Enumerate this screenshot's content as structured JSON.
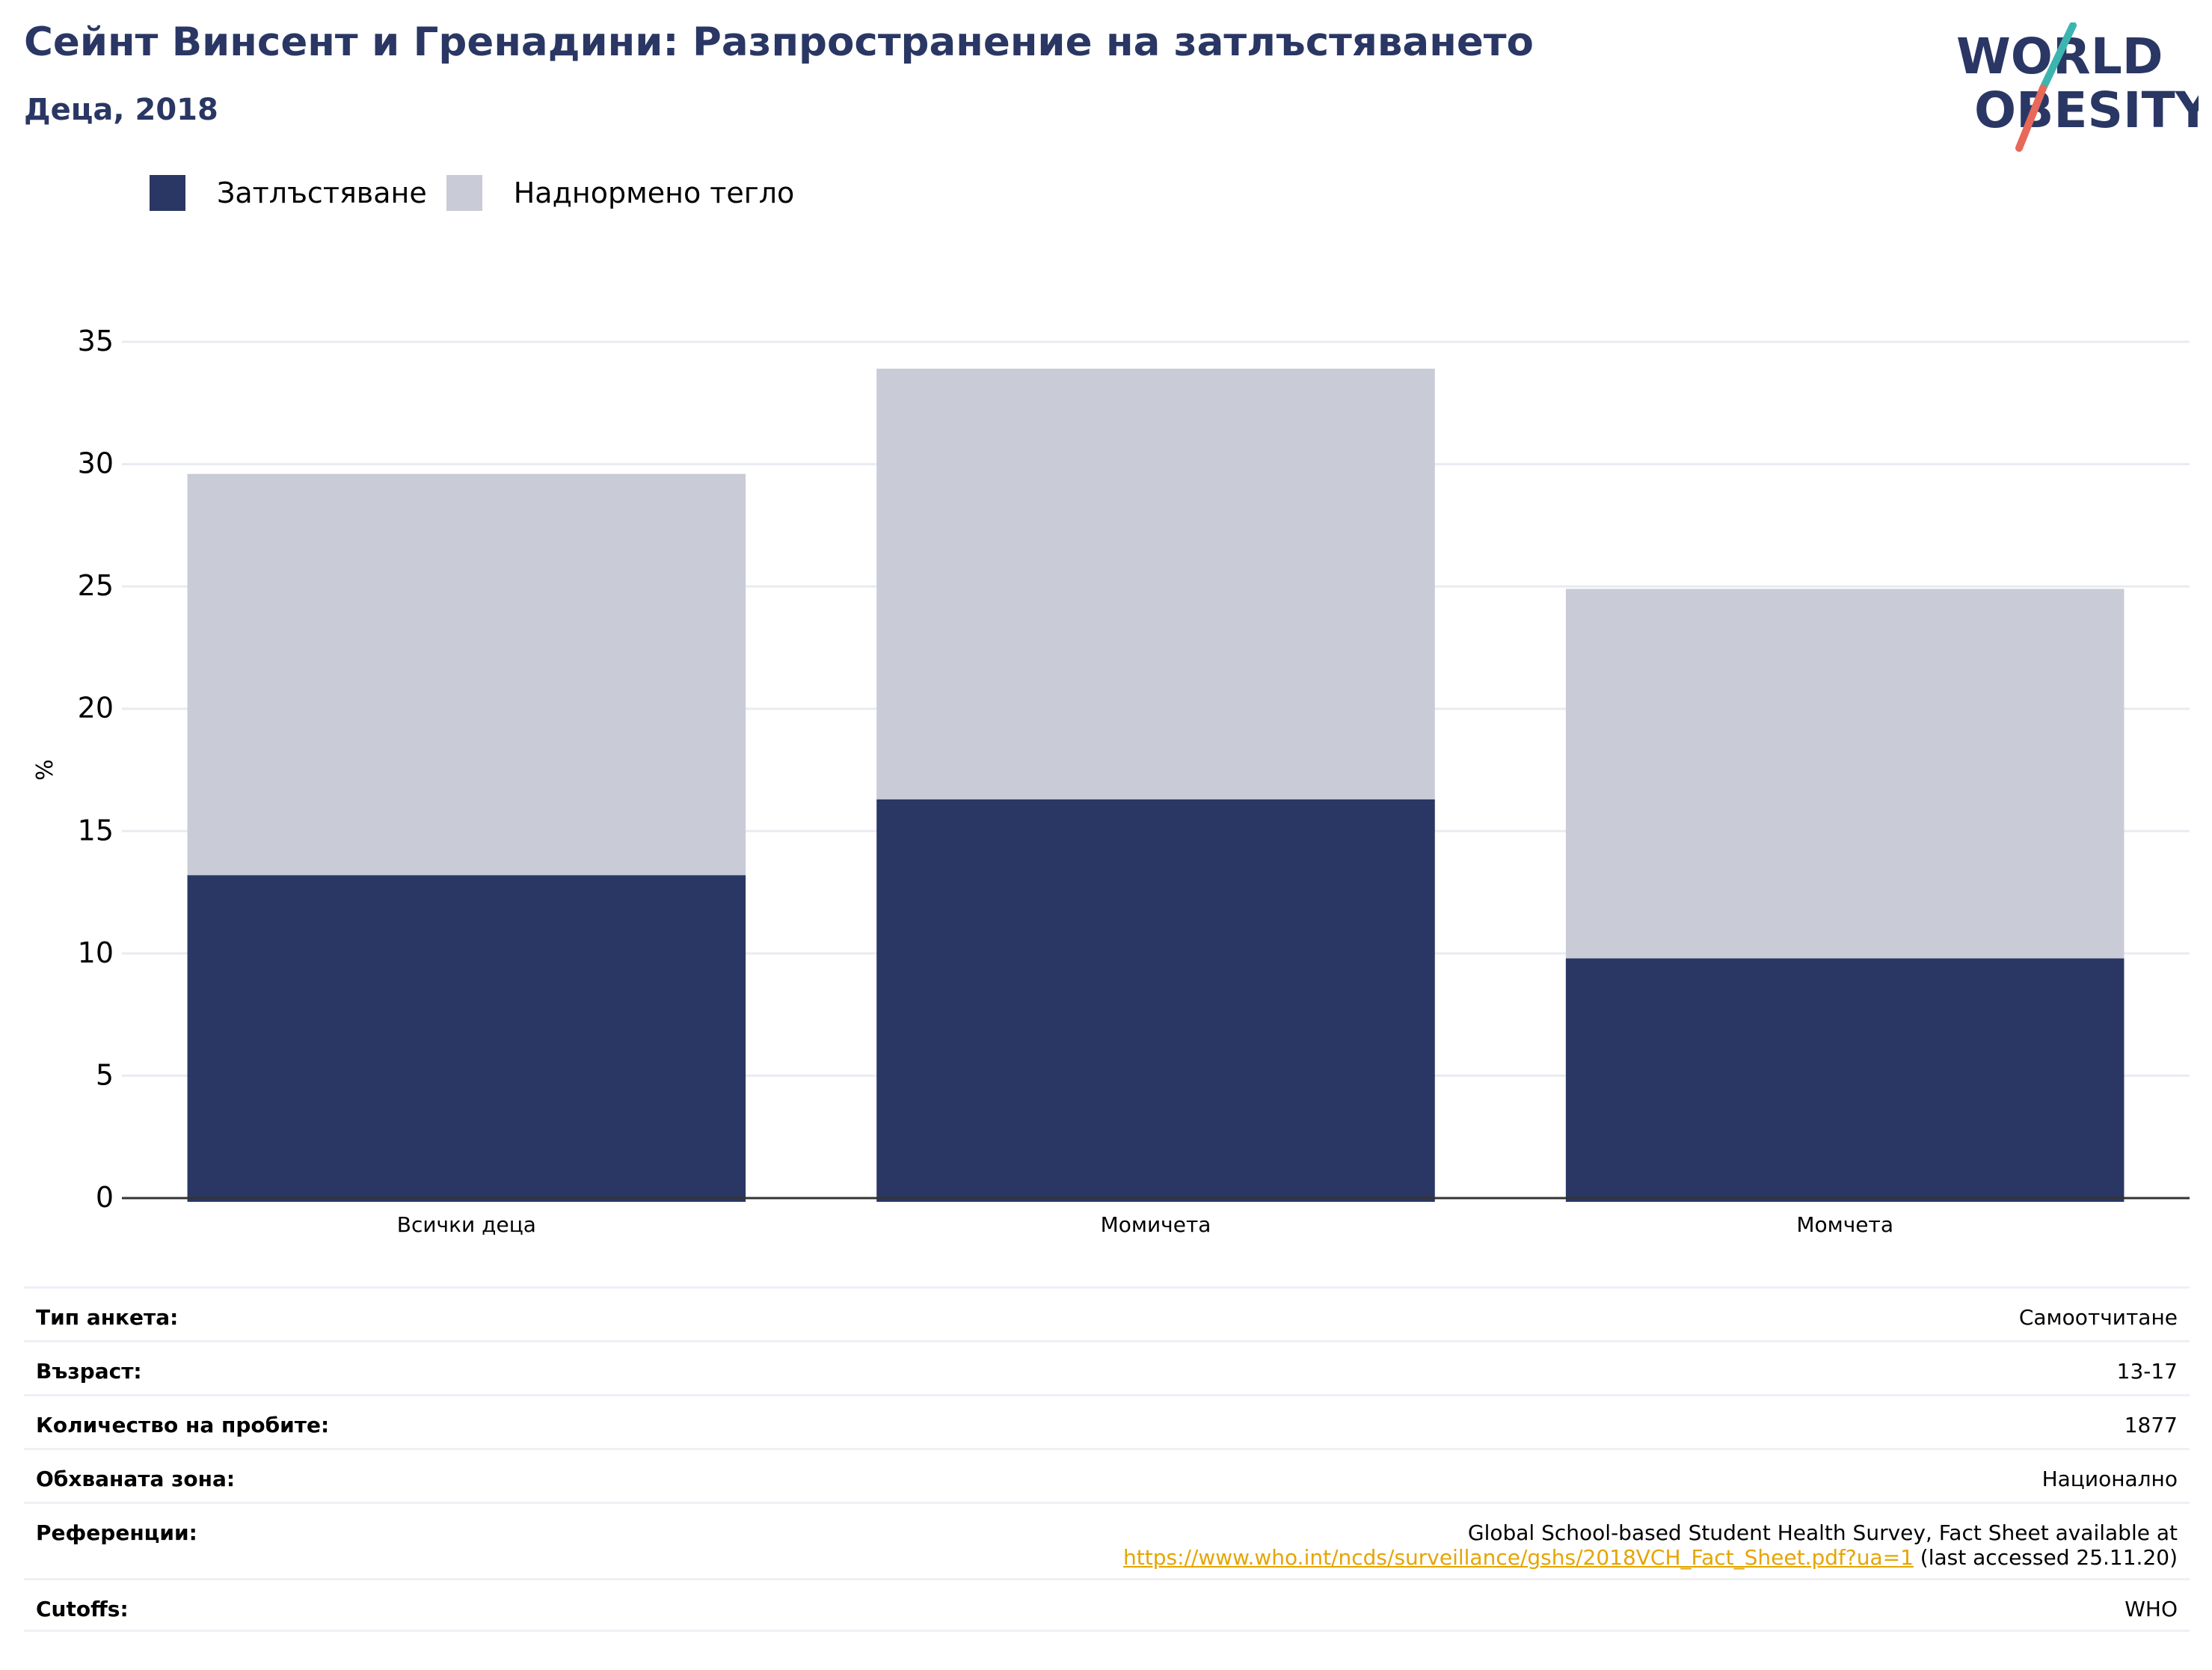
{
  "header": {
    "title": "Сейнт Винсент и Гренадини: Разпространение на затлъстяването",
    "subtitle": "Деца, 2018"
  },
  "logo": {
    "line1": "WORLD",
    "line2": "OBESITY"
  },
  "colors": {
    "obesity": "#2a3764",
    "overweight": "#c9cbd7",
    "title": "#2a3764",
    "link": "#e5a500"
  },
  "chart_data": {
    "type": "bar",
    "stacked": true,
    "categories": [
      "Всички деца",
      "Момичета",
      "Момчета"
    ],
    "series": [
      {
        "name": "Затлъстяване",
        "values": [
          13.2,
          16.3,
          9.8
        ]
      },
      {
        "name": "Наднормено тегло",
        "values": [
          16.4,
          17.6,
          15.1
        ]
      }
    ],
    "ylabel": "%",
    "ylim": [
      0,
      35
    ],
    "yticks": [
      0,
      5,
      10,
      15,
      20,
      25,
      30,
      35
    ],
    "grid": true,
    "legend": "top-left"
  },
  "info": {
    "rows": [
      {
        "key": "Тип анкета:",
        "value": "Самоотчитане"
      },
      {
        "key": "Възраст:",
        "value": "13-17"
      },
      {
        "key": "Количество на пробите:",
        "value": "1877"
      },
      {
        "key": "Обхваната зона:",
        "value": "Национално"
      }
    ],
    "references": {
      "key": "Референции:",
      "line1": "Global School-based Student Health Survey, Fact Sheet available at",
      "link": "https://www.who.int/ncds/surveillance/gshs/2018VCH_Fact_Sheet.pdf?ua=1",
      "suffix": " (last accessed 25.11.20)"
    },
    "cutoffs": {
      "key": "Cutoffs:",
      "value": "WHO"
    }
  }
}
